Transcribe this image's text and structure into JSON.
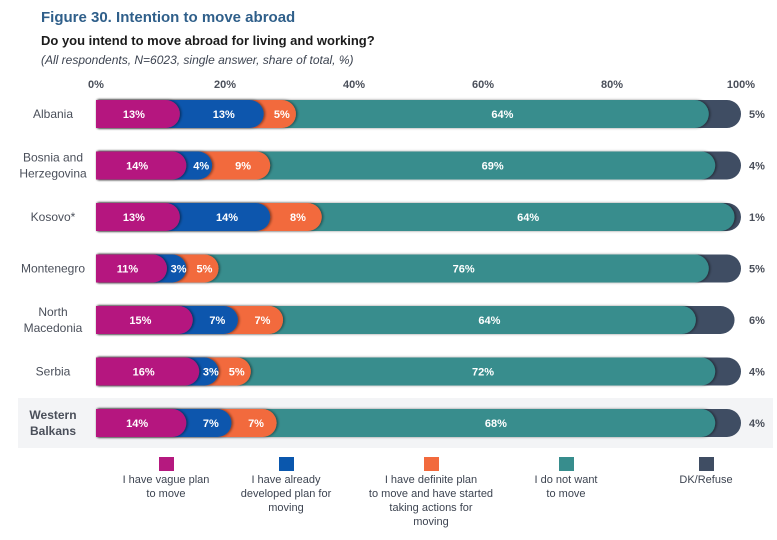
{
  "figure": {
    "title": "Figure 30.  Intention to move abroad",
    "subtitle": "Do you intend to move abroad for living and working?",
    "note": "(All respondents, N=6023, single answer, share of total, %)"
  },
  "chart_data": {
    "type": "bar",
    "orientation": "horizontal",
    "stacked": true,
    "title": "Figure 30. Intention to move abroad",
    "subtitle": "Do you intend to move abroad for living and working?",
    "xlabel": "",
    "ylabel": "",
    "xlim": [
      0,
      100
    ],
    "x_ticks": [
      "0%",
      "20%",
      "40%",
      "60%",
      "80%",
      "100%"
    ],
    "x_tick_values": [
      0,
      20,
      40,
      60,
      80,
      100
    ],
    "grid": false,
    "legend_position": "bottom",
    "categories": [
      [
        "Albania"
      ],
      [
        "Bosnia and",
        "Herzegovina"
      ],
      [
        "Kosovo*"
      ],
      [
        "Montenegro"
      ],
      [
        "North",
        "Macedonia"
      ],
      [
        "Serbia"
      ],
      [
        "Western",
        "Balkans"
      ]
    ],
    "highlighted_category_index": 6,
    "series": [
      {
        "name": "I have vague plan to move",
        "legend_lines": [
          "I have vague plan",
          "to move"
        ],
        "color": "#b5197f",
        "values": [
          13,
          14,
          13,
          11,
          15,
          16,
          14
        ]
      },
      {
        "name": "I have already developed plan for moving",
        "legend_lines": [
          "I have already",
          "developed plan for",
          "moving"
        ],
        "color": "#0a57ad",
        "values": [
          13,
          4,
          14,
          3,
          7,
          3,
          7
        ]
      },
      {
        "name": "I have definite plan to move and have started taking actions for moving",
        "legend_lines": [
          "I have definite plan",
          "to move and have started",
          "taking actions for",
          "moving"
        ],
        "color": "#f26a3d",
        "values": [
          5,
          9,
          8,
          5,
          7,
          5,
          7
        ]
      },
      {
        "name": "I do not want to move",
        "legend_lines": [
          "I do not want",
          "to move"
        ],
        "color": "#378d8d",
        "values": [
          64,
          69,
          64,
          76,
          64,
          72,
          68
        ]
      },
      {
        "name": "DK/Refuse",
        "legend_lines": [
          "DK/Refuse"
        ],
        "color": "#3f4d63",
        "values": [
          5,
          4,
          1,
          5,
          6,
          4,
          4
        ]
      }
    ]
  }
}
